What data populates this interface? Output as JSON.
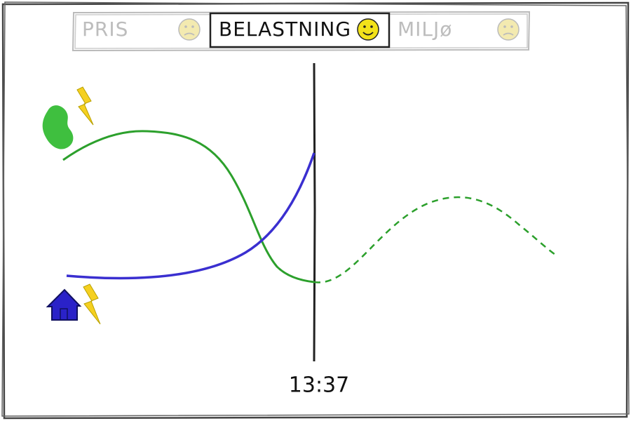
{
  "tabs": [
    {
      "label": "PRIS",
      "active": false
    },
    {
      "label": "BELASTNING",
      "active": true
    },
    {
      "label": "MILJø",
      "active": false
    }
  ],
  "time": "13:37"
}
